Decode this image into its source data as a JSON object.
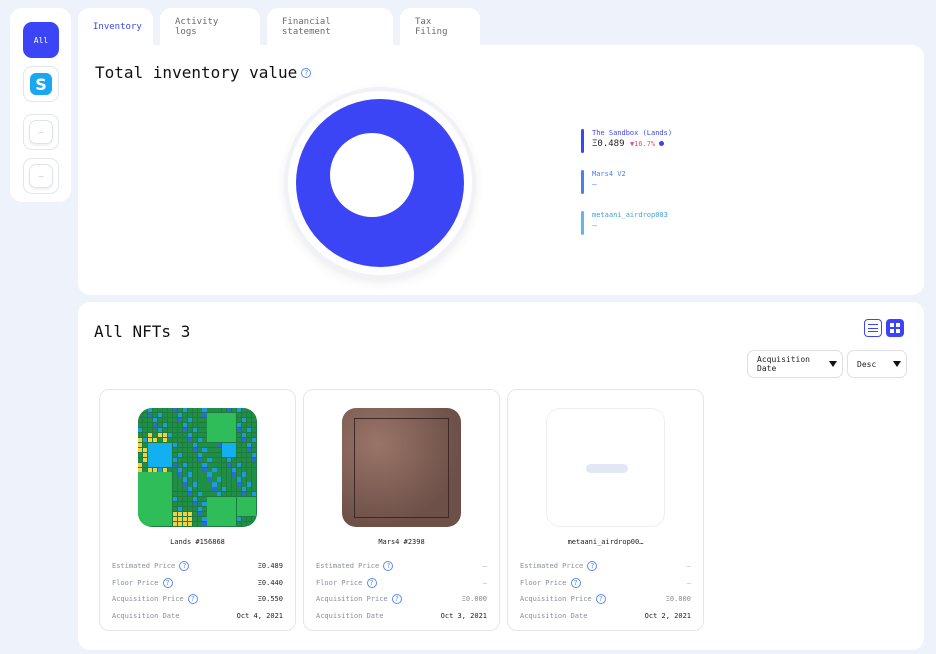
{
  "sidebar": {
    "all_label": "All",
    "sandbox_icon": "sandbox-s-logo",
    "sandbox_letter": "S",
    "placeholder_label": "—"
  },
  "tabs": [
    {
      "label": "Inventory",
      "active": true
    },
    {
      "label": "Activity logs",
      "active": false
    },
    {
      "label": "Financial statement",
      "active": false
    },
    {
      "label": "Tax Filing",
      "active": false
    }
  ],
  "inventory": {
    "title": "Total inventory value",
    "help": "?",
    "donut_color": "#3b45f5",
    "legend": [
      {
        "name": "The Sandbox (Lands)",
        "value": "Ξ0.489",
        "change": "▼16.7%",
        "color": "#3b45f5"
      },
      {
        "name": "Mars4 V2",
        "value": "—",
        "color": "#4a7ff2"
      },
      {
        "name": "metaani_airdrop003",
        "value": "—",
        "color": "#64b5e8"
      }
    ]
  },
  "nfts": {
    "title": "All NFTs 3",
    "sort_label": "Acquisition Date",
    "order_label": "Desc",
    "row_labels": {
      "estimated": "Estimated Price",
      "floor": "Floor Price",
      "acquisition_price": "Acquisition Price",
      "acquisition_date": "Acquisition Date"
    },
    "items": [
      {
        "name": "Lands #156868",
        "estimated": "Ξ0.489",
        "floor": "Ξ0.440",
        "acquisition_price": "Ξ0.550",
        "acquisition_date": "Oct 4, 2021"
      },
      {
        "name": "Mars4 #2398",
        "estimated": "—",
        "floor": "—",
        "acquisition_price": "Ξ0.000",
        "acquisition_date": "Oct 3, 2021"
      },
      {
        "name": "metaani_airdrop00…",
        "estimated": "—",
        "floor": "—",
        "acquisition_price": "Ξ0.000",
        "acquisition_date": "Oct 2, 2021"
      }
    ]
  },
  "colors": {
    "accent": "#3b45f5",
    "negative": "#e8468d"
  }
}
